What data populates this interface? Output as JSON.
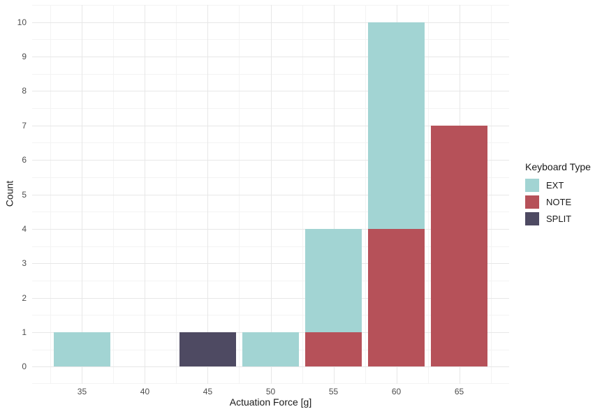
{
  "chart_data": {
    "type": "bar",
    "subtype": "stacked-histogram",
    "title": "",
    "xlabel": "Actuation Force [g]",
    "ylabel": "Count",
    "categories": [
      35,
      40,
      45,
      50,
      55,
      60,
      65
    ],
    "x_ticks": [
      "35",
      "40",
      "45",
      "50",
      "55",
      "60",
      "65"
    ],
    "y_ticks": [
      "0",
      "1",
      "2",
      "3",
      "4",
      "5",
      "6",
      "7",
      "8",
      "9",
      "10"
    ],
    "xlim": [
      31.03,
      68.97
    ],
    "ylim": [
      -0.5,
      10.5
    ],
    "binwidth": 5,
    "bar_width": 4.5,
    "grid": "major+minor",
    "series": [
      {
        "name": "EXT",
        "color": "#a2d4d3",
        "values": [
          1,
          0,
          0,
          1,
          3,
          6,
          0
        ]
      },
      {
        "name": "NOTE",
        "color": "#b65159",
        "values": [
          0,
          0,
          0,
          0,
          1,
          4,
          7
        ]
      },
      {
        "name": "SPLIT",
        "color": "#4e4a62",
        "values": [
          0,
          0,
          1,
          0,
          0,
          0,
          0
        ]
      }
    ],
    "stack_order_bottom_to_top": [
      "SPLIT",
      "NOTE",
      "EXT"
    ],
    "legend": {
      "title": "Keyboard Type",
      "position": "right",
      "entries": [
        "EXT",
        "NOTE",
        "SPLIT"
      ]
    }
  },
  "style": {
    "background": "#ffffff",
    "grid_major_color": "#e7e7e7",
    "grid_minor_color": "#f3f3f3",
    "axis_text_color": "#4d4d4d",
    "axis_title_color": "#1a1a1a"
  }
}
